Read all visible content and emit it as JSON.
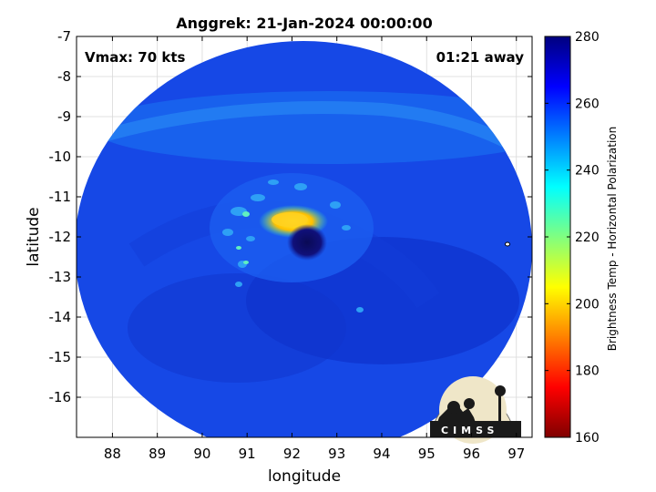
{
  "title": "Anggrek: 21-Jan-2024 00:00:00",
  "vmax_label": "Vmax: 70 kts",
  "time_label": "01:21 away",
  "x_axis": {
    "label": "longitude",
    "min": 87.2,
    "max": 97.35,
    "ticks": [
      88,
      89,
      90,
      91,
      92,
      93,
      94,
      95,
      96,
      97
    ]
  },
  "y_axis": {
    "label": "latitude",
    "min": -17,
    "max": -7,
    "ticks": [
      -7,
      -8,
      -9,
      -10,
      -11,
      -12,
      -13,
      -14,
      -15,
      -16
    ]
  },
  "colorbar": {
    "label": "Brightness Temp - Horizontal Polarization",
    "min": 160,
    "max": 280,
    "ticks": [
      280,
      260,
      240,
      220,
      200,
      180,
      160
    ],
    "colors": [
      "#7f0000",
      "#ff0000",
      "#ff8000",
      "#ffff00",
      "#80ff80",
      "#00ffff",
      "#0080ff",
      "#0000ff",
      "#00007f"
    ]
  },
  "grid": true,
  "logo_text": "CIMSS",
  "storm_center": {
    "lon": 92.2,
    "lat": -12.1
  }
}
